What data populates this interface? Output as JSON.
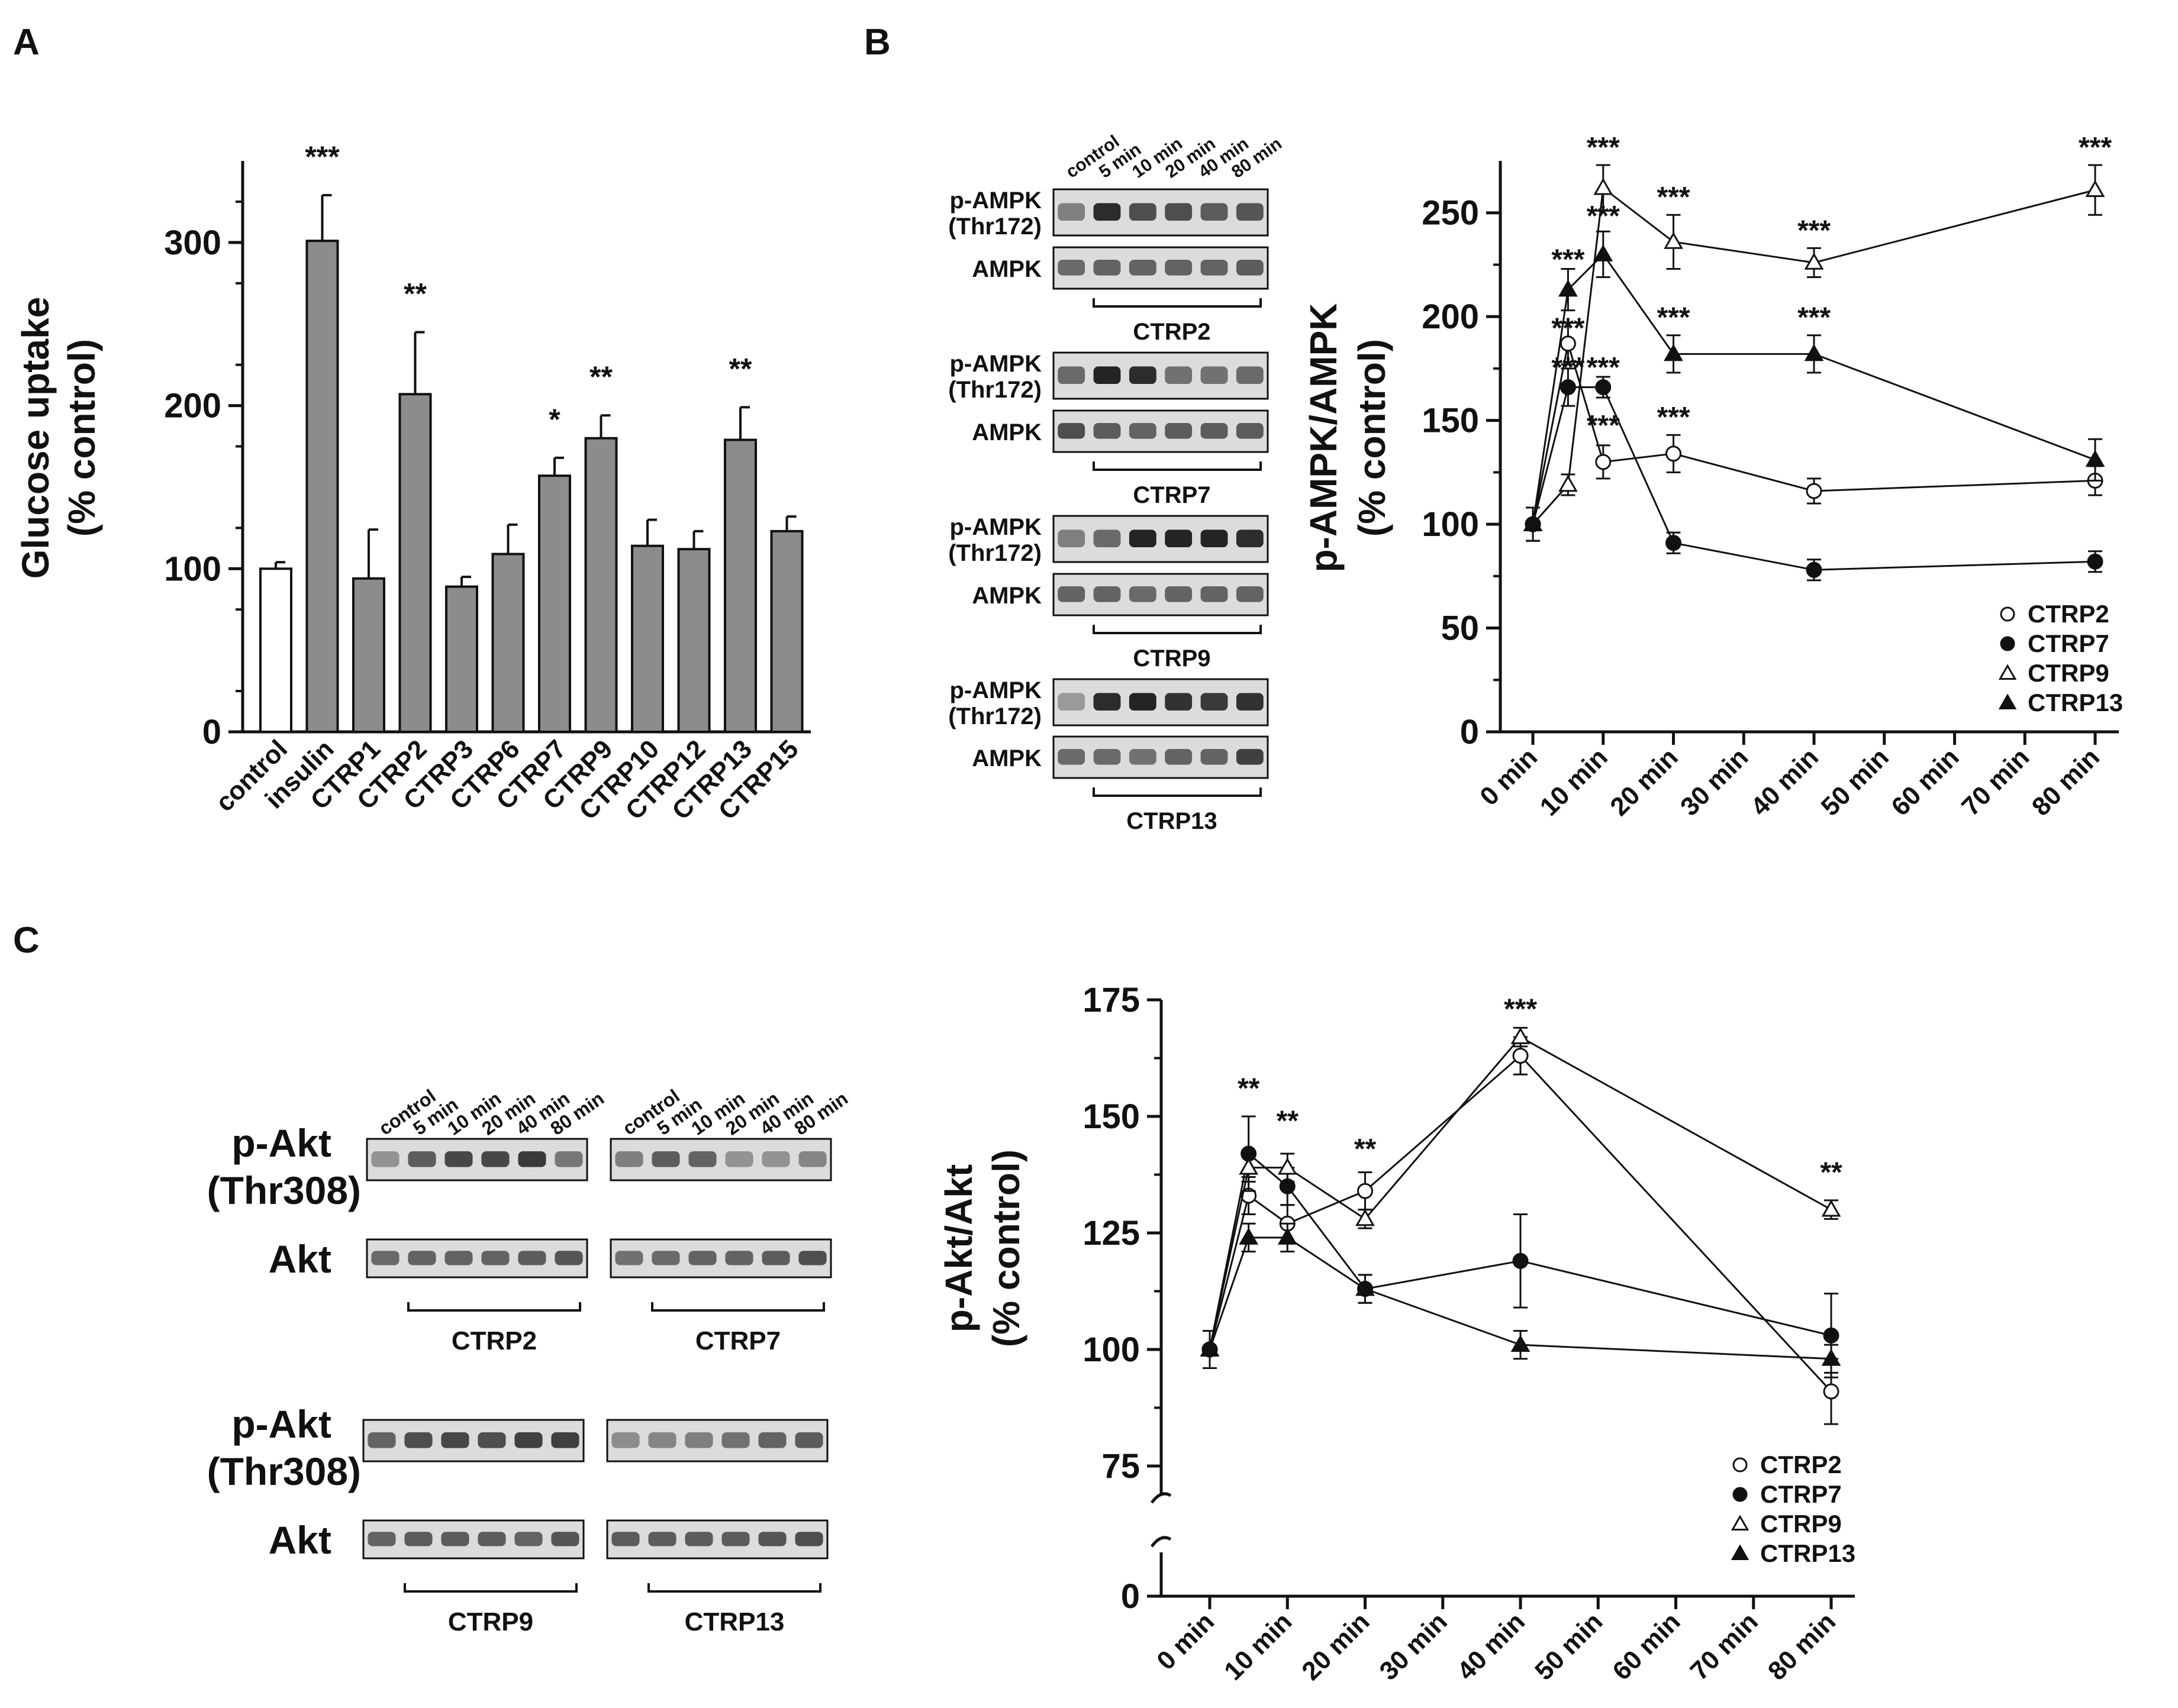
{
  "chart_data": [
    {
      "panel": "A",
      "type": "bar",
      "ylabel": "Glucose uptake",
      "ylabel2": "(% control)",
      "ylim": [
        0,
        350
      ],
      "yticks": [
        0,
        100,
        200,
        300
      ],
      "categories": [
        "control",
        "insulin",
        "CTRP1",
        "CTRP2",
        "CTRP3",
        "CTRP6",
        "CTRP7",
        "CTRP9",
        "CTRP10",
        "CTRP12",
        "CTRP13",
        "CTRP15"
      ],
      "values": [
        100,
        301,
        94,
        207,
        89,
        109,
        157,
        180,
        114,
        112,
        179,
        123
      ],
      "errors": [
        4,
        28,
        30,
        38,
        6,
        18,
        11,
        14,
        16,
        11,
        20,
        9
      ],
      "significance": [
        "",
        "***",
        "",
        "**",
        "",
        "",
        "*",
        "**",
        "",
        "",
        "**",
        ""
      ],
      "colors": {
        "control": "#ffffff",
        "treatment": "#8c8c8c",
        "stroke": "#111111"
      }
    },
    {
      "panel": "B",
      "type": "line",
      "ylabel": "p-AMPK/AMPK",
      "ylabel2": "(% control)",
      "ylim": [
        0,
        275
      ],
      "yticks": [
        0,
        50,
        100,
        150,
        200,
        250
      ],
      "x": [
        0,
        10,
        20,
        30,
        40,
        50,
        60,
        70,
        80
      ],
      "xtick_labels": [
        "0 min",
        "10 min",
        "20 min",
        "30 min",
        "40 min",
        "50 min",
        "60 min",
        "70 min",
        "80 min"
      ],
      "series": [
        {
          "name": "CTRP2",
          "marker": "circle-open",
          "x": [
            0,
            5,
            10,
            20,
            40,
            80
          ],
          "values": [
            100,
            187,
            130,
            134,
            116,
            121
          ],
          "errors": [
            8,
            10,
            8,
            9,
            6,
            7
          ]
        },
        {
          "name": "CTRP7",
          "marker": "circle-filled",
          "x": [
            0,
            5,
            10,
            20,
            40,
            80
          ],
          "values": [
            100,
            166,
            166,
            91,
            78,
            82
          ],
          "errors": [
            8,
            9,
            5,
            5,
            5,
            5
          ]
        },
        {
          "name": "CTRP9",
          "marker": "triangle-open",
          "x": [
            0,
            5,
            10,
            20,
            40,
            80
          ],
          "values": [
            100,
            119,
            262,
            236,
            226,
            261
          ],
          "errors": [
            8,
            5,
            11,
            13,
            7,
            12
          ]
        },
        {
          "name": "CTRP13",
          "marker": "triangle-filled",
          "x": [
            0,
            5,
            10,
            20,
            40,
            80
          ],
          "values": [
            100,
            213,
            230,
            182,
            182,
            131
          ],
          "errors": [
            8,
            10,
            11,
            9,
            9,
            10
          ]
        }
      ],
      "annotations": [
        {
          "x": 5,
          "y": 223,
          "text": "***"
        },
        {
          "x": 5,
          "y": 190,
          "text": "***"
        },
        {
          "x": 5,
          "y": 171,
          "text": "***"
        },
        {
          "x": 10,
          "y": 277,
          "text": "***"
        },
        {
          "x": 10,
          "y": 244,
          "text": "***"
        },
        {
          "x": 10,
          "y": 171,
          "text": "***"
        },
        {
          "x": 10,
          "y": 143,
          "text": "***"
        },
        {
          "x": 20,
          "y": 253,
          "text": "***"
        },
        {
          "x": 20,
          "y": 195,
          "text": "***"
        },
        {
          "x": 20,
          "y": 147,
          "text": "***"
        },
        {
          "x": 40,
          "y": 237,
          "text": "***"
        },
        {
          "x": 40,
          "y": 195,
          "text": "***"
        },
        {
          "x": 80,
          "y": 277,
          "text": "***"
        }
      ],
      "legend": "bottom-right"
    },
    {
      "panel": "C",
      "type": "line",
      "ylabel": "p-Akt/Akt",
      "ylabel2": "(% control)",
      "ylim": [
        75,
        175
      ],
      "axis_break": [
        0,
        75
      ],
      "yticks": [
        0,
        75,
        100,
        125,
        150,
        175
      ],
      "x": [
        0,
        10,
        20,
        30,
        40,
        50,
        60,
        70,
        80
      ],
      "xtick_labels": [
        "0 min",
        "10 min",
        "20 min",
        "30 min",
        "40 min",
        "50 min",
        "60 min",
        "70 min",
        "80 min"
      ],
      "series": [
        {
          "name": "CTRP2",
          "marker": "circle-open",
          "x": [
            0,
            5,
            10,
            20,
            40,
            80
          ],
          "values": [
            100,
            133,
            127,
            134,
            163,
            91
          ],
          "errors": [
            4,
            4,
            4,
            4,
            4,
            7
          ]
        },
        {
          "name": "CTRP7",
          "marker": "circle-filled",
          "x": [
            0,
            5,
            10,
            20,
            40,
            80
          ],
          "values": [
            100,
            142,
            135,
            113,
            119,
            103
          ],
          "errors": [
            4,
            8,
            4,
            3,
            10,
            9
          ]
        },
        {
          "name": "CTRP9",
          "marker": "triangle-open",
          "x": [
            0,
            5,
            10,
            20,
            40,
            80
          ],
          "values": [
            100,
            139,
            139,
            128,
            167,
            130
          ],
          "errors": [
            4,
            3,
            3,
            2,
            2,
            2
          ]
        },
        {
          "name": "CTRP13",
          "marker": "triangle-filled",
          "x": [
            0,
            5,
            10,
            20,
            40,
            80
          ],
          "values": [
            100,
            124,
            124,
            113,
            101,
            98
          ],
          "errors": [
            4,
            3,
            3,
            3,
            3,
            3
          ]
        }
      ],
      "annotations": [
        {
          "x": 5,
          "y": 154,
          "text": "**"
        },
        {
          "x": 10,
          "y": 147,
          "text": "**"
        },
        {
          "x": 20,
          "y": 141,
          "text": "**"
        },
        {
          "x": 40,
          "y": 171,
          "text": "***"
        },
        {
          "x": 80,
          "y": 136,
          "text": "**"
        }
      ],
      "legend": "bottom-right"
    }
  ],
  "panel_labels": {
    "a": "A",
    "b": "B",
    "c": "C"
  },
  "blots": {
    "timepoints": [
      "control",
      "5 min",
      "10 min",
      "20 min",
      "40 min",
      "80 min"
    ],
    "b_rows": [
      "p-AMPK",
      "(Thr172)",
      "AMPK"
    ],
    "b_groups": [
      "CTRP2",
      "CTRP7",
      "CTRP9",
      "CTRP13"
    ],
    "c_rows": [
      "p-Akt",
      "(Thr308)",
      "Akt"
    ],
    "c_groups_top": [
      "CTRP2",
      "CTRP7"
    ],
    "c_groups_bottom": [
      "CTRP9",
      "CTRP13"
    ]
  }
}
